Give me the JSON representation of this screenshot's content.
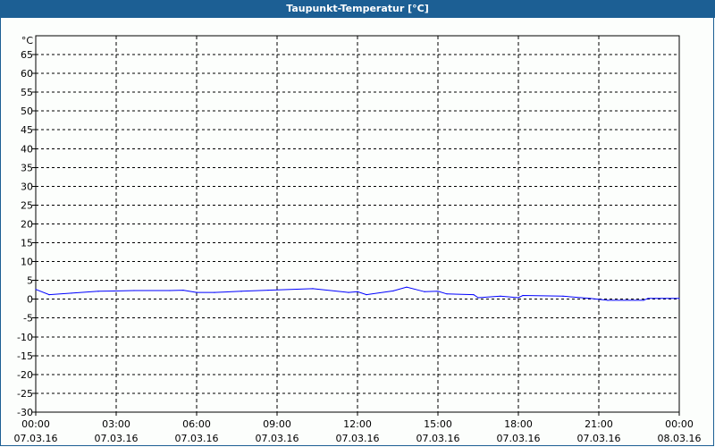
{
  "title": "Taupunkt-Temperatur [°C]",
  "colors": {
    "titlebar": "#1c5f94",
    "series": "#0000ff",
    "grid": "#000000"
  },
  "chart_data": {
    "type": "line",
    "title": "Taupunkt-Temperatur [°C]",
    "ylabel": "°C",
    "ylim": [
      -30,
      65
    ],
    "yticks": [
      65,
      60,
      55,
      50,
      45,
      40,
      35,
      30,
      25,
      20,
      15,
      10,
      5,
      0,
      -5,
      -10,
      -15,
      -20,
      -25,
      -30
    ],
    "xlim": [
      "07.03.16 00:00",
      "08.03.16 00:00"
    ],
    "xticks": [
      {
        "time": "00:00",
        "date": "07.03.16"
      },
      {
        "time": "03:00",
        "date": "07.03.16"
      },
      {
        "time": "06:00",
        "date": "07.03.16"
      },
      {
        "time": "09:00",
        "date": "07.03.16"
      },
      {
        "time": "12:00",
        "date": "07.03.16"
      },
      {
        "time": "15:00",
        "date": "07.03.16"
      },
      {
        "time": "18:00",
        "date": "07.03.16"
      },
      {
        "time": "21:00",
        "date": "07.03.16"
      },
      {
        "time": "00:00",
        "date": "08.03.16"
      }
    ],
    "grid": true,
    "series": [
      {
        "x": [
          "00:00",
          "00:30",
          "01:20",
          "02:20",
          "03:40",
          "05:00",
          "05:30",
          "06:00",
          "06:40",
          "07:40",
          "08:40",
          "10:20",
          "11:40",
          "12:00",
          "12:20",
          "13:20",
          "13:50",
          "14:30",
          "15:00",
          "15:20",
          "16:20",
          "16:30",
          "17:20",
          "18:00",
          "18:10",
          "19:40",
          "20:40",
          "21:20",
          "22:40",
          "22:50",
          "24:00"
        ],
        "y": [
          2.6,
          1.2,
          1.6,
          2.1,
          2.3,
          2.3,
          2.4,
          1.8,
          1.8,
          2.1,
          2.4,
          2.8,
          1.8,
          2.0,
          1.2,
          2.2,
          3.2,
          2.0,
          2.1,
          1.4,
          1.2,
          0.4,
          0.8,
          0.4,
          1.0,
          0.8,
          0.2,
          -0.3,
          -0.3,
          0.2,
          0.2
        ]
      }
    ]
  }
}
